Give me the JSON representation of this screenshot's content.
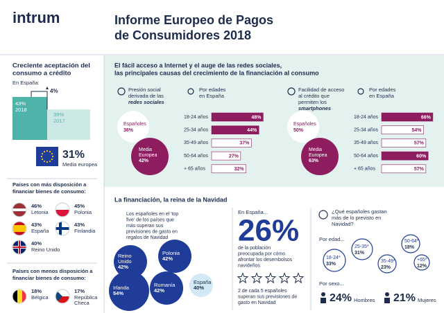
{
  "header": {
    "logo": "intrum",
    "title_lines": [
      "Informe Europeo de Pagos",
      "de Consumidores 2018"
    ]
  },
  "credit": {
    "title_lines": [
      "Creciente aceptación del",
      "consumo a crédito"
    ],
    "subtitle": "En España:",
    "increase": "4%",
    "spain_2018": {
      "value": "43%",
      "label": "2018"
    },
    "spain_2017": {
      "value": "39%",
      "label": "2017"
    },
    "europe": {
      "value": "31%",
      "label": "Media europea"
    }
  },
  "more_willing": {
    "title_lines": [
      "Países con más disposición a",
      "financiar bienes de consumo:"
    ],
    "countries": [
      {
        "value": "46%",
        "name_lines": [
          "Letonia"
        ]
      },
      {
        "value": "45%",
        "name_lines": [
          "Polonia"
        ]
      },
      {
        "value": "43%",
        "name_lines": [
          "España"
        ]
      },
      {
        "value": "43%",
        "name_lines": [
          "Finlandia"
        ]
      },
      {
        "value": "40%",
        "name_lines": [
          "Reino Unido"
        ]
      }
    ]
  },
  "less_willing": {
    "title_lines": [
      "Países con menos disposición a",
      "financiar bienes de consumo:"
    ],
    "countries": [
      {
        "value": "18%",
        "name_lines": [
          "Bélgica"
        ]
      },
      {
        "value": "17%",
        "name_lines": [
          "República",
          "Checa"
        ]
      }
    ]
  },
  "causes": {
    "title_lines": [
      "El fácil acceso a Internet y el auge de las redes sociales,",
      "las principales causas del crecimiento de la financiación al consumo"
    ],
    "panels": [
      {
        "title_lines": [
          "Presión social",
          "derivada de las",
          "redes sociales"
        ],
        "spain": {
          "label": "Españoles",
          "value": "36%"
        },
        "europe": {
          "label_lines": [
            "Media",
            "Europea"
          ],
          "value": "42%"
        },
        "age_title_lines": [
          "Por edades",
          "en España"
        ],
        "ages": [
          "18-24 años",
          "25-34 años",
          "35-49 años",
          "50-64 años",
          "+ 65 años"
        ],
        "values": [
          48,
          44,
          37,
          27,
          32
        ],
        "value_labels": [
          "48%",
          "44%",
          "37%",
          "27%",
          "32%"
        ],
        "colors": [
          "#8d1d5f",
          "#8d1d5f",
          "#ffffff",
          "#ffffff",
          "#ffffff"
        ]
      },
      {
        "title_lines": [
          "Facilidad de acceso",
          "al crédito que",
          "permiten los",
          "smartphones"
        ],
        "spain": {
          "label": "Españoles",
          "value": "50%"
        },
        "europe": {
          "label_lines": [
            "Media",
            "Europea"
          ],
          "value": "63%"
        },
        "age_title_lines": [
          "Por edades",
          "en España"
        ],
        "ages": [
          "18-24 años",
          "25-34 años",
          "35-49 años",
          "50-64 años",
          "+ 65 años"
        ],
        "values": [
          66,
          54,
          57,
          60,
          57
        ],
        "value_labels": [
          "66%",
          "54%",
          "57%",
          "60%",
          "57%"
        ],
        "colors": [
          "#8d1d5f",
          "#ffffff",
          "#ffffff",
          "#8d1d5f",
          "#ffffff"
        ]
      }
    ]
  },
  "christmas": {
    "title": "La financiación, la reina de la Navidad",
    "top_five": {
      "text_lines": [
        "Los españoles en el 'top",
        "five' de los países que",
        "más superan sus",
        "previsiones de gasto en",
        "regalos de Navidad"
      ],
      "bubbles": [
        {
          "name_lines": [
            "Reino",
            "Unido"
          ],
          "value": "42%"
        },
        {
          "name_lines": [
            "Polonia"
          ],
          "value": "42%"
        },
        {
          "name_lines": [
            "Irlanda"
          ],
          "value": "54%"
        },
        {
          "name_lines": [
            "Rumanía"
          ],
          "value": "42%"
        },
        {
          "name_lines": [
            "España"
          ],
          "value": "40%"
        }
      ]
    },
    "spain": {
      "label": "En España...",
      "value": "26%",
      "text_lines": [
        "de la población",
        "preocupada por cómo",
        "afrontar los desembolsos",
        "navideños"
      ],
      "footnote_lines": [
        "2 de cada 5 españoles",
        "superan sus previsiones de",
        "gasto en Navidad"
      ]
    },
    "who": {
      "title_lines": [
        "¿Qué españoles gastan",
        "más de lo previsto en",
        "Navidad?"
      ],
      "by_age": "Por edad...",
      "ages": [
        {
          "label": "18-24*",
          "value": "33%"
        },
        {
          "label": "25-35*",
          "value": "31%"
        },
        {
          "label": "35-49*",
          "value": "23%"
        },
        {
          "label": "50-64*",
          "value": "18%"
        },
        {
          "label": "+65*",
          "value": "12%"
        }
      ],
      "by_sex": "Por sexo...",
      "sexes": [
        {
          "value": "24%",
          "label": "Hombres"
        },
        {
          "value": "21%",
          "label": "Mujeres"
        }
      ]
    }
  }
}
